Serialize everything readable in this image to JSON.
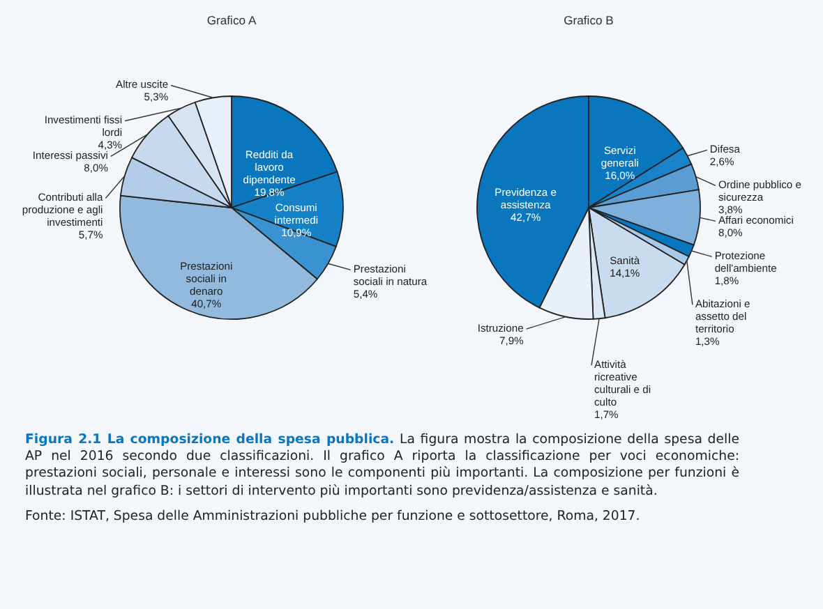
{
  "chart_data": [
    {
      "type": "pie",
      "title": "Grafico A",
      "categories": [
        "Redditi da lavoro dipendente",
        "Consumi intermedi",
        "Prestazioni sociali in natura",
        "Prestazioni sociali in denaro",
        "Contributi alla produzione e agli investimenti",
        "Interessi passivi",
        "Investimenti fissi lordi",
        "Altre uscite"
      ],
      "values": [
        19.8,
        10.9,
        5.4,
        40.7,
        5.7,
        8.0,
        4.3,
        5.3
      ],
      "value_labels": [
        "19,8%",
        "10,9%",
        "5,4%",
        "40,7%",
        "5,7%",
        "8,0%",
        "4,3%",
        "5,3%"
      ],
      "colors": [
        "#0a76be",
        "#1581c6",
        "#3a92d0",
        "#92b9de",
        "#b3cde8",
        "#c6d9ee",
        "#d7e3f2",
        "#e8eff8"
      ]
    },
    {
      "type": "pie",
      "title": "Grafico B",
      "categories": [
        "Servizi generali",
        "Difesa",
        "Ordine pubblico e sicurezza",
        "Affari economici",
        "Protezione dell'ambiente",
        "Abitazioni e assetto del territorio",
        "Sanità",
        "Attività ricreative culturali e di culto",
        "Istruzione",
        "Previdenza e assistenza"
      ],
      "values": [
        16.0,
        2.6,
        3.8,
        8.0,
        1.8,
        1.3,
        14.1,
        1.7,
        7.9,
        42.7
      ],
      "value_labels": [
        "16,0%",
        "2,6%",
        "3,8%",
        "8,0%",
        "1,8%",
        "1,3%",
        "14,1%",
        "1,7%",
        "7,9%",
        "42,7%"
      ],
      "colors": [
        "#0a76be",
        "#1a82c8",
        "#5a9dd5",
        "#7fb0dd",
        "#0a76be",
        "#a9c9e8",
        "#c9dbef",
        "#dce7f4",
        "#e9f0f8",
        "#0a76be"
      ],
      "annotations": [
        "Figura 2.1  La composizione della spesa pubblica.",
        "La figura mostra la composizione della spesa delle AP nel 2016 secondo due classificazioni. Il grafico A riporta la classificazione per voci economiche: prestazioni sociali, personale e interessi sono le componenti più importanti. La composizione per funzioni è illustrata nel grafico B: i settori di intervento più importanti sono previdenza/assistenza e sanità.",
        "Fonte: ISTAT, Spesa delle Amministrazioni pubbliche per funzione e sottosettore, Roma, 2017."
      ]
    }
  ]
}
